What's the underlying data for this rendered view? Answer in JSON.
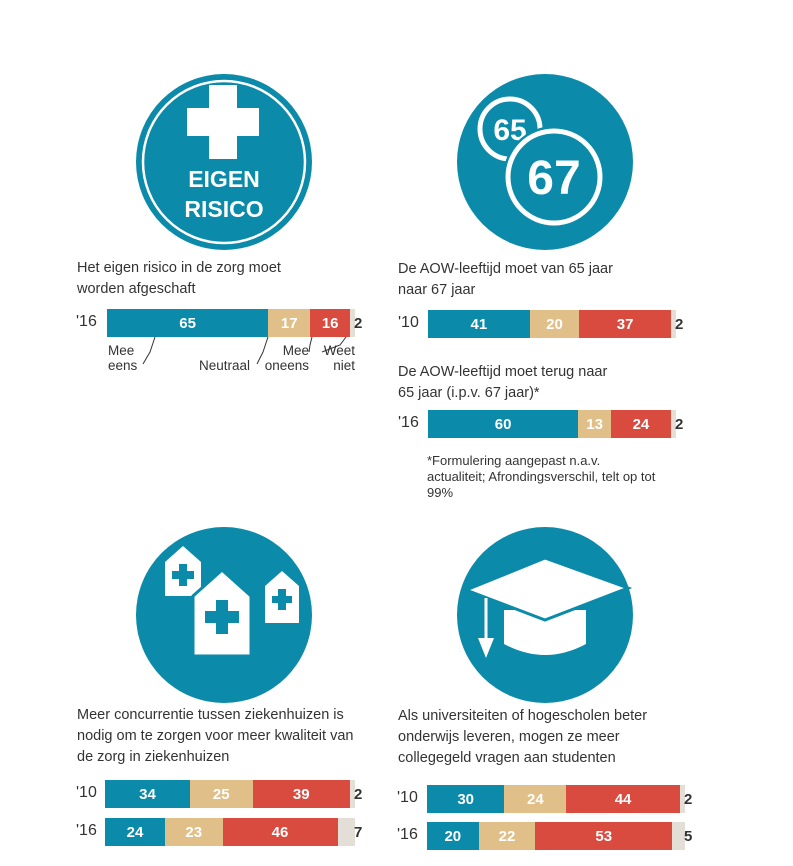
{
  "colors": {
    "teal": "#0b8aa9",
    "tan": "#e0bf88",
    "red": "#d94a3f",
    "grey": "#e3ded6",
    "dark": "#333333"
  },
  "icons": {
    "eigen_risico": {
      "name": "medical-cross-icon",
      "text1": "EIGEN",
      "text2": "RISICO"
    },
    "aow": {
      "name": "age-65-67-icon",
      "small": "65",
      "big": "67"
    },
    "hospitals": {
      "name": "hospital-buildings-icon"
    },
    "education": {
      "name": "graduation-cap-icon"
    }
  },
  "legend": {
    "mee_eens": "Mee\neens",
    "neutraal": "Neutraal",
    "mee_oneens": "Mee\noneens",
    "weet_niet": "Weet\nniet"
  },
  "chart_data": [
    {
      "type": "bar",
      "stacked": true,
      "orientation": "horizontal",
      "title": "Het eigen risico in de zorg moet worden afgeschaft",
      "categories": [
        "'16"
      ],
      "series": [
        {
          "name": "Mee eens",
          "values": [
            65
          ]
        },
        {
          "name": "Neutraal",
          "values": [
            17
          ]
        },
        {
          "name": "Mee oneens",
          "values": [
            16
          ]
        },
        {
          "name": "Weet niet",
          "values": [
            2
          ]
        }
      ]
    },
    {
      "type": "bar",
      "stacked": true,
      "orientation": "horizontal",
      "title": "De AOW-leeftijd moet van 65 jaar naar 67 jaar",
      "categories": [
        "'10"
      ],
      "series": [
        {
          "name": "Mee eens",
          "values": [
            41
          ]
        },
        {
          "name": "Neutraal",
          "values": [
            20
          ]
        },
        {
          "name": "Mee oneens",
          "values": [
            37
          ]
        },
        {
          "name": "Weet niet",
          "values": [
            2
          ]
        }
      ]
    },
    {
      "type": "bar",
      "stacked": true,
      "orientation": "horizontal",
      "title": "De AOW-leeftijd moet terug naar 65 jaar (i.p.v. 67 jaar)*",
      "note": "*Formulering aangepast n.a.v. actualiteit; Afrondingsverschil, telt op tot 99%",
      "categories": [
        "'16"
      ],
      "series": [
        {
          "name": "Mee eens",
          "values": [
            60
          ]
        },
        {
          "name": "Neutraal",
          "values": [
            13
          ]
        },
        {
          "name": "Mee oneens",
          "values": [
            24
          ]
        },
        {
          "name": "Weet niet",
          "values": [
            2
          ]
        }
      ]
    },
    {
      "type": "bar",
      "stacked": true,
      "orientation": "horizontal",
      "title": "Meer concurrentie tussen ziekenhuizen is nodig om te zorgen voor meer kwaliteit van de zorg in ziekenhuizen",
      "categories": [
        "'10",
        "'16"
      ],
      "series": [
        {
          "name": "Mee eens",
          "values": [
            34,
            24
          ]
        },
        {
          "name": "Neutraal",
          "values": [
            25,
            23
          ]
        },
        {
          "name": "Mee oneens",
          "values": [
            39,
            46
          ]
        },
        {
          "name": "Weet niet",
          "values": [
            2,
            7
          ]
        }
      ]
    },
    {
      "type": "bar",
      "stacked": true,
      "orientation": "horizontal",
      "title": "Als universiteiten of hogescholen beter onderwijs leveren, mogen ze meer collegegeld vragen aan studenten",
      "categories": [
        "'10",
        "'16"
      ],
      "series": [
        {
          "name": "Mee eens",
          "values": [
            30,
            20
          ]
        },
        {
          "name": "Neutraal",
          "values": [
            24,
            22
          ]
        },
        {
          "name": "Mee oneens",
          "values": [
            44,
            53
          ]
        },
        {
          "name": "Weet niet",
          "values": [
            2,
            5
          ]
        }
      ]
    }
  ]
}
